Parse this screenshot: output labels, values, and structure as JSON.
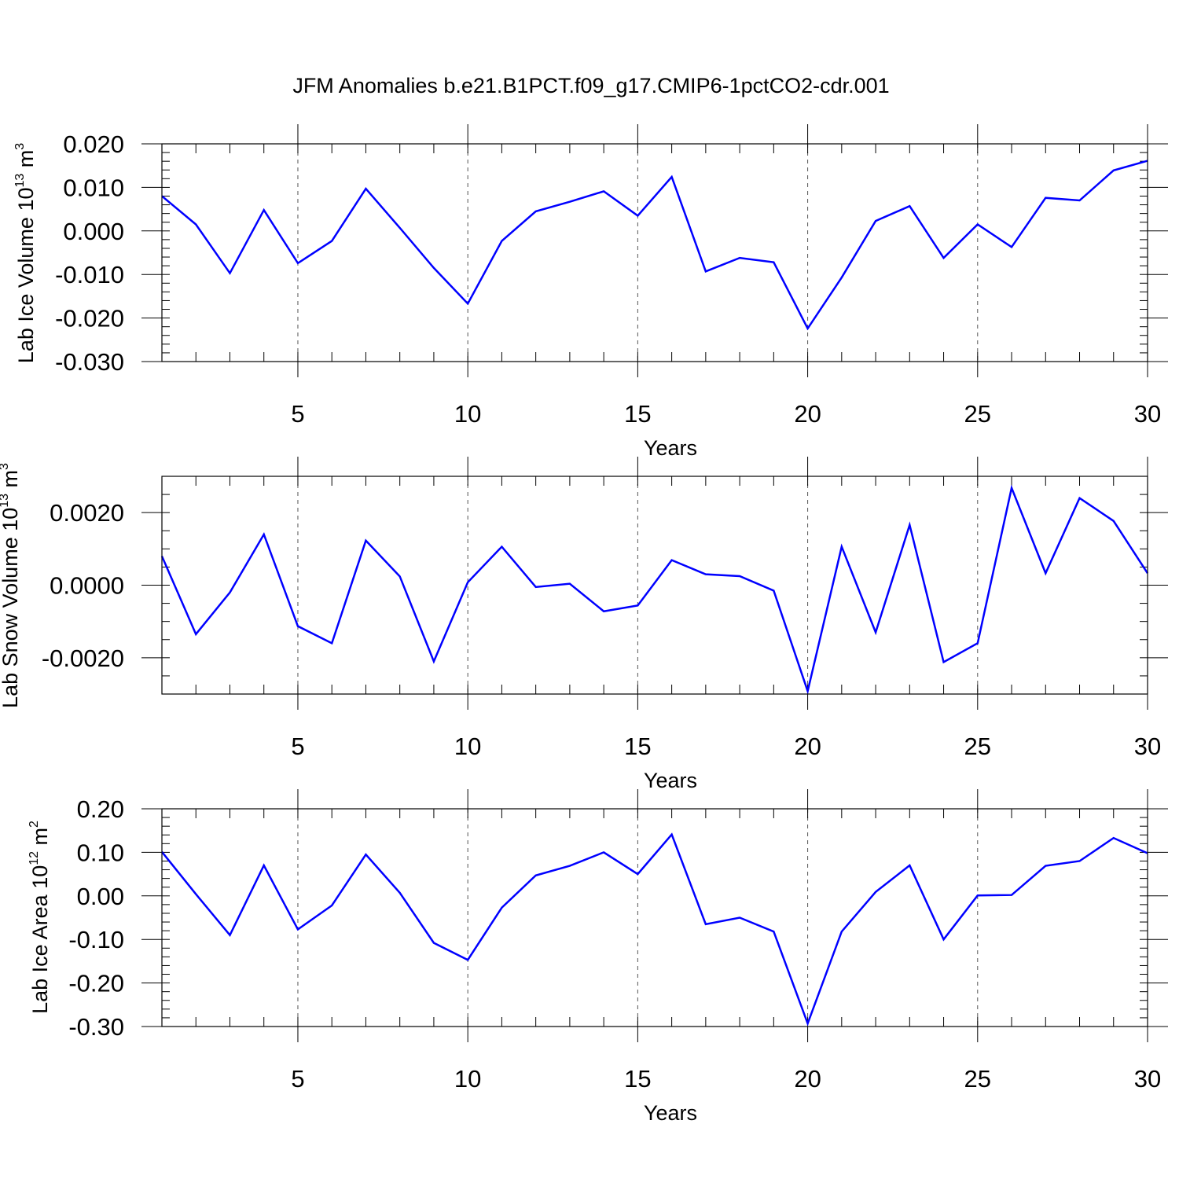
{
  "title": "JFM Anomalies b.e21.B1PCT.f09_g17.CMIP6-1pctCO2-cdr.001",
  "chart_data": [
    {
      "type": "line",
      "ylabel_main": "Lab Ice Volume 10",
      "ylabel_exp": "13",
      "ylabel_unit": " m",
      "ylabel_unit_exp": "3",
      "xlabel": "Years",
      "xlim": [
        1,
        30
      ],
      "ylim": [
        -0.03,
        0.02
      ],
      "yticks": [
        -0.03,
        -0.02,
        -0.01,
        0.0,
        0.01,
        0.02
      ],
      "ytick_labels": [
        "-0.030",
        "-0.020",
        "-0.010",
        "0.000",
        "0.010",
        "0.020"
      ],
      "yminor_step": 0.002,
      "xticks": [
        5,
        10,
        15,
        20,
        25,
        30
      ],
      "xtick_labels": [
        "5",
        "10",
        "15",
        "20",
        "25",
        "30"
      ],
      "x": [
        1,
        2,
        3,
        4,
        5,
        6,
        7,
        8,
        9,
        10,
        11,
        12,
        13,
        14,
        15,
        16,
        17,
        18,
        19,
        20,
        21,
        22,
        23,
        24,
        25,
        26,
        27,
        28,
        29,
        30
      ],
      "series": [
        {
          "name": "Lab Ice Volume",
          "color": "#0000ff",
          "values": [
            0.008,
            0.0015,
            -0.0097,
            0.0048,
            -0.0074,
            -0.0023,
            0.0097,
            0.0007,
            -0.0085,
            -0.0167,
            -0.0023,
            0.0045,
            0.0067,
            0.0091,
            0.0035,
            0.0124,
            -0.0093,
            -0.0062,
            -0.0072,
            -0.0224,
            -0.0107,
            0.0023,
            0.0057,
            -0.0062,
            0.0015,
            -0.0037,
            0.0076,
            0.007,
            0.0139,
            0.0161
          ]
        }
      ]
    },
    {
      "type": "line",
      "ylabel_main": "Lab Snow Volume 10",
      "ylabel_exp": "13",
      "ylabel_unit": " m",
      "ylabel_unit_exp": "3",
      "xlabel": "Years",
      "xlim": [
        1,
        30
      ],
      "ylim": [
        -0.003,
        0.003
      ],
      "yticks": [
        -0.002,
        0.0,
        0.002
      ],
      "ytick_labels": [
        "-0.0020",
        "0.0000",
        "0.0020"
      ],
      "yminor_step": 0.0005,
      "xticks": [
        5,
        10,
        15,
        20,
        25,
        30
      ],
      "xtick_labels": [
        "5",
        "10",
        "15",
        "20",
        "25",
        "30"
      ],
      "x": [
        1,
        2,
        3,
        4,
        5,
        6,
        7,
        8,
        9,
        10,
        11,
        12,
        13,
        14,
        15,
        16,
        17,
        18,
        19,
        20,
        21,
        22,
        23,
        24,
        25,
        26,
        27,
        28,
        29,
        30
      ],
      "series": [
        {
          "name": "Lab Snow Volume",
          "color": "#0000ff",
          "values": [
            0.0008,
            -0.00135,
            -0.0002,
            0.0014,
            -0.00113,
            -0.0016,
            0.00123,
            0.00024,
            -0.0021,
            8e-05,
            0.00106,
            -5e-05,
            4e-05,
            -0.00072,
            -0.00056,
            0.00069,
            0.0003,
            0.00025,
            -0.00015,
            -0.00292,
            0.00106,
            -0.0013,
            0.00166,
            -0.00212,
            -0.0016,
            0.00268,
            0.00033,
            0.0024,
            0.00177,
            0.00033
          ]
        }
      ]
    },
    {
      "type": "line",
      "ylabel_main": "Lab Ice Area 10",
      "ylabel_exp": "12",
      "ylabel_unit": " m",
      "ylabel_unit_exp": "2",
      "xlabel": "Years",
      "xlim": [
        1,
        30
      ],
      "ylim": [
        -0.3,
        0.2
      ],
      "yticks": [
        -0.3,
        -0.2,
        -0.1,
        0.0,
        0.1,
        0.2
      ],
      "ytick_labels": [
        "-0.30",
        "-0.20",
        "-0.10",
        "0.00",
        "0.10",
        "0.20"
      ],
      "yminor_step": 0.02,
      "xticks": [
        5,
        10,
        15,
        20,
        25,
        30
      ],
      "xtick_labels": [
        "5",
        "10",
        "15",
        "20",
        "25",
        "30"
      ],
      "x": [
        1,
        2,
        3,
        4,
        5,
        6,
        7,
        8,
        9,
        10,
        11,
        12,
        13,
        14,
        15,
        16,
        17,
        18,
        19,
        20,
        21,
        22,
        23,
        24,
        25,
        26,
        27,
        28,
        29,
        30
      ],
      "series": [
        {
          "name": "Lab Ice Area",
          "color": "#0000ff",
          "values": [
            0.101,
            0.004,
            -0.09,
            0.07,
            -0.077,
            -0.022,
            0.095,
            0.007,
            -0.108,
            -0.147,
            -0.027,
            0.047,
            0.069,
            0.1,
            0.05,
            0.141,
            -0.065,
            -0.05,
            -0.082,
            -0.293,
            -0.082,
            0.009,
            0.07,
            -0.1,
            0.001,
            0.002,
            0.069,
            0.08,
            0.133,
            0.098
          ]
        }
      ]
    }
  ]
}
